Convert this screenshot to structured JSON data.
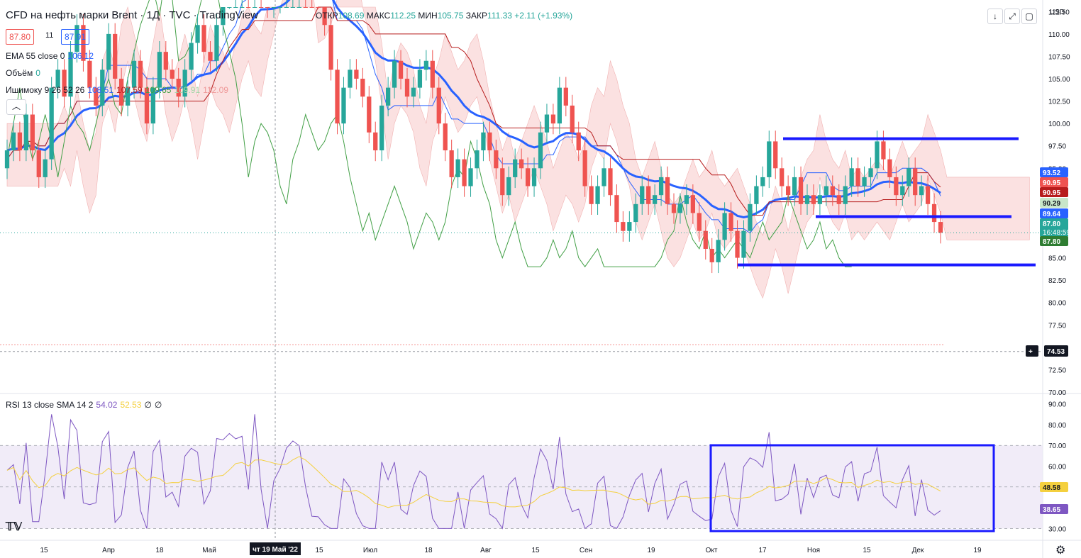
{
  "header": {
    "title": "CFD на нефть марки Brent · 1Д · TVC · TradingView",
    "ohlc": {
      "open_label": "ОТКР",
      "open": "108.69",
      "high_label": "МАКС",
      "high": "112.25",
      "low_label": "МИН",
      "low": "105.75",
      "close_label": "ЗАКР",
      "close": "111.33",
      "change": "+2.11 (+1.93%)"
    },
    "bid": "87.80",
    "spread": "11",
    "ask": "87.91",
    "currency": "USD"
  },
  "legend": {
    "ema_label": "EMA 55 close 0",
    "ema_value": "106.12",
    "volume_label": "Объём",
    "volume_value": "0",
    "ichimoku_label": "Ишимоку 9 26 52 26",
    "ichimoku_values": [
      "108.51",
      "107.59",
      "109.65",
      "109.91",
      "112.09"
    ],
    "rsi_label": "RSI 13 close SMA 14 2",
    "rsi_values": [
      "54.02",
      "52.53",
      "∅",
      "∅"
    ]
  },
  "toolbar": {
    "icons": [
      "arrow-down-icon",
      "fullscreen-icon",
      "screenshot-icon"
    ]
  },
  "colors": {
    "up": "#26a69a",
    "down": "#ef5350",
    "ema": "#2962ff",
    "tenkan": "#2962ff",
    "kijun": "#b71c1c",
    "chikou": "#43a047",
    "rsi": "#7e57c2",
    "rsi_ma": "#f4d03f",
    "kumo_bear": "#f8c9c9",
    "kumo_bull": "#c8e6c9"
  },
  "chart_data": {
    "type": "candlestick",
    "price_axis_ticks": [
      "112.50",
      "110.00",
      "107.50",
      "105.00",
      "102.50",
      "100.00",
      "97.50",
      "95.00",
      "92.50",
      "90.00",
      "87.50",
      "85.00",
      "82.50",
      "80.00",
      "77.50",
      "75.00",
      "72.50",
      "70.00"
    ],
    "rsi_axis_ticks": [
      "90.00",
      "80.00",
      "70.00",
      "60.00",
      "50.00",
      "40.00",
      "30.00"
    ],
    "time_axis_ticks": [
      "15",
      "Апр",
      "18",
      "Май",
      "Июн",
      "15",
      "Июл",
      "18",
      "Авг",
      "15",
      "Сен",
      "19",
      "Окт",
      "17",
      "Ноя",
      "15",
      "Дек",
      "19"
    ],
    "crosshair_date": "чт 19 Май '22",
    "price_labels": [
      {
        "value": "93.52",
        "color": "#2962ff"
      },
      {
        "value": "90.95",
        "color": "#ef5350"
      },
      {
        "value": "90.95",
        "color": "#b71c1c"
      },
      {
        "value": "90.29",
        "color": "#c8e6c9"
      },
      {
        "value": "89.64",
        "color": "#2962ff"
      },
      {
        "value": "87.80",
        "extra": "16:48:59",
        "color": "#26a69a"
      },
      {
        "value": "87.80",
        "color": "#2e7d32"
      },
      {
        "value": "74.53",
        "color": "#131722"
      }
    ],
    "rsi_labels": [
      {
        "value": "48.58",
        "color": "#f4d03f"
      },
      {
        "value": "38.65",
        "color": "#7e57c2"
      }
    ],
    "ylim": [
      70,
      113
    ],
    "rsi_ylim": [
      25,
      95
    ],
    "candles": [
      {
        "o": 95,
        "c": 97
      },
      {
        "o": 97,
        "c": 99
      },
      {
        "o": 99,
        "c": 97
      },
      {
        "o": 97,
        "c": 101
      },
      {
        "o": 101,
        "c": 97
      },
      {
        "o": 97,
        "c": 94
      },
      {
        "o": 94,
        "c": 96
      },
      {
        "o": 96,
        "c": 104
      },
      {
        "o": 104,
        "c": 106
      },
      {
        "o": 106,
        "c": 103
      },
      {
        "o": 103,
        "c": 108
      },
      {
        "o": 108,
        "c": 111
      },
      {
        "o": 111,
        "c": 107
      },
      {
        "o": 107,
        "c": 104
      },
      {
        "o": 104,
        "c": 102
      },
      {
        "o": 102,
        "c": 106
      },
      {
        "o": 106,
        "c": 110
      },
      {
        "o": 110,
        "c": 105
      },
      {
        "o": 105,
        "c": 102
      },
      {
        "o": 102,
        "c": 104
      },
      {
        "o": 104,
        "c": 107
      },
      {
        "o": 107,
        "c": 104
      },
      {
        "o": 104,
        "c": 100
      },
      {
        "o": 100,
        "c": 104
      },
      {
        "o": 104,
        "c": 108
      },
      {
        "o": 108,
        "c": 106
      },
      {
        "o": 106,
        "c": 105
      },
      {
        "o": 105,
        "c": 103
      },
      {
        "o": 103,
        "c": 106
      },
      {
        "o": 106,
        "c": 109
      },
      {
        "o": 109,
        "c": 111
      },
      {
        "o": 111,
        "c": 108
      },
      {
        "o": 108,
        "c": 107
      },
      {
        "o": 107,
        "c": 111
      },
      {
        "o": 111,
        "c": 114
      },
      {
        "o": 114,
        "c": 117
      },
      {
        "o": 117,
        "c": 119
      },
      {
        "o": 119,
        "c": 121
      },
      {
        "o": 121,
        "c": 118
      },
      {
        "o": 118,
        "c": 123
      },
      {
        "o": 123,
        "c": 120
      },
      {
        "o": 120,
        "c": 113
      },
      {
        "o": 113,
        "c": 113.5
      },
      {
        "o": 113.5,
        "c": 115
      },
      {
        "o": 115,
        "c": 118
      },
      {
        "o": 118,
        "c": 121
      },
      {
        "o": 121,
        "c": 123
      },
      {
        "o": 123,
        "c": 121
      },
      {
        "o": 121,
        "c": 117
      },
      {
        "o": 117,
        "c": 114
      },
      {
        "o": 114,
        "c": 111
      },
      {
        "o": 111,
        "c": 106
      },
      {
        "o": 106,
        "c": 100
      },
      {
        "o": 100,
        "c": 104
      },
      {
        "o": 104,
        "c": 106
      },
      {
        "o": 106,
        "c": 105
      },
      {
        "o": 105,
        "c": 103
      },
      {
        "o": 103,
        "c": 99
      },
      {
        "o": 99,
        "c": 97
      },
      {
        "o": 97,
        "c": 102
      },
      {
        "o": 102,
        "c": 104
      },
      {
        "o": 104,
        "c": 107
      },
      {
        "o": 107,
        "c": 105
      },
      {
        "o": 105,
        "c": 103
      },
      {
        "o": 103,
        "c": 104
      },
      {
        "o": 104,
        "c": 106
      },
      {
        "o": 106,
        "c": 107
      },
      {
        "o": 107,
        "c": 104
      },
      {
        "o": 104,
        "c": 100
      },
      {
        "o": 100,
        "c": 97
      },
      {
        "o": 97,
        "c": 94
      },
      {
        "o": 94,
        "c": 96
      },
      {
        "o": 96,
        "c": 93
      },
      {
        "o": 93,
        "c": 95
      },
      {
        "o": 95,
        "c": 97
      },
      {
        "o": 97,
        "c": 99
      },
      {
        "o": 99,
        "c": 97
      },
      {
        "o": 97,
        "c": 95
      },
      {
        "o": 95,
        "c": 92
      },
      {
        "o": 92,
        "c": 94
      },
      {
        "o": 94,
        "c": 96
      },
      {
        "o": 96,
        "c": 95
      },
      {
        "o": 95,
        "c": 93
      },
      {
        "o": 93,
        "c": 95
      },
      {
        "o": 95,
        "c": 99
      },
      {
        "o": 99,
        "c": 101
      },
      {
        "o": 101,
        "c": 100
      },
      {
        "o": 100,
        "c": 104
      },
      {
        "o": 104,
        "c": 102
      },
      {
        "o": 102,
        "c": 99
      },
      {
        "o": 99,
        "c": 97
      },
      {
        "o": 97,
        "c": 93
      },
      {
        "o": 93,
        "c": 91
      },
      {
        "o": 91,
        "c": 93
      },
      {
        "o": 93,
        "c": 95
      },
      {
        "o": 95,
        "c": 92
      },
      {
        "o": 92,
        "c": 89
      },
      {
        "o": 89,
        "c": 88
      },
      {
        "o": 88,
        "c": 89
      },
      {
        "o": 89,
        "c": 91
      },
      {
        "o": 91,
        "c": 93
      },
      {
        "o": 93,
        "c": 91
      },
      {
        "o": 91,
        "c": 92
      },
      {
        "o": 92,
        "c": 94
      },
      {
        "o": 94,
        "c": 91
      },
      {
        "o": 91,
        "c": 90
      },
      {
        "o": 90,
        "c": 91
      },
      {
        "o": 91,
        "c": 92
      },
      {
        "o": 92,
        "c": 90
      },
      {
        "o": 90,
        "c": 88
      },
      {
        "o": 88,
        "c": 86
      },
      {
        "o": 86,
        "c": 84.5
      },
      {
        "o": 84.5,
        "c": 87
      },
      {
        "o": 87,
        "c": 90
      },
      {
        "o": 90,
        "c": 88
      },
      {
        "o": 88,
        "c": 85
      },
      {
        "o": 85,
        "c": 88
      },
      {
        "o": 88,
        "c": 91
      },
      {
        "o": 91,
        "c": 93
      },
      {
        "o": 93,
        "c": 94
      },
      {
        "o": 94,
        "c": 98
      },
      {
        "o": 98,
        "c": 95
      },
      {
        "o": 95,
        "c": 93
      },
      {
        "o": 93,
        "c": 92
      },
      {
        "o": 92,
        "c": 94
      },
      {
        "o": 94,
        "c": 91
      },
      {
        "o": 91,
        "c": 92
      },
      {
        "o": 92,
        "c": 91
      },
      {
        "o": 91,
        "c": 92
      },
      {
        "o": 92,
        "c": 93
      },
      {
        "o": 93,
        "c": 92
      },
      {
        "o": 92,
        "c": 91
      },
      {
        "o": 91,
        "c": 93
      },
      {
        "o": 93,
        "c": 95
      },
      {
        "o": 95,
        "c": 93
      },
      {
        "o": 93,
        "c": 94
      },
      {
        "o": 94,
        "c": 95
      },
      {
        "o": 95,
        "c": 98
      },
      {
        "o": 98,
        "c": 96
      },
      {
        "o": 96,
        "c": 94
      },
      {
        "o": 94,
        "c": 92
      },
      {
        "o": 92,
        "c": 93
      },
      {
        "o": 93,
        "c": 95
      },
      {
        "o": 95,
        "c": 92
      },
      {
        "o": 92,
        "c": 93
      },
      {
        "o": 93,
        "c": 91
      },
      {
        "o": 91,
        "c": 89
      },
      {
        "o": 89,
        "c": 87.8
      }
    ]
  }
}
